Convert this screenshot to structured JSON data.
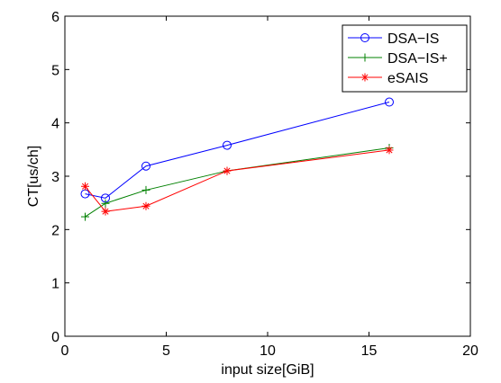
{
  "chart_data": {
    "type": "line",
    "xlabel": "input size[GiB]",
    "ylabel": "CT[us/ch]",
    "xlim": [
      0,
      20
    ],
    "ylim": [
      0,
      6
    ],
    "xticks": [
      0,
      5,
      10,
      15,
      20
    ],
    "yticks": [
      0,
      1,
      2,
      3,
      4,
      5,
      6
    ],
    "grid": false,
    "legend_position": "top-right",
    "series": [
      {
        "name": "DSA−IS",
        "color": "#0000ff",
        "marker": "circle",
        "x": [
          1,
          2,
          4,
          8,
          16
        ],
        "y": [
          2.67,
          2.59,
          3.19,
          3.58,
          4.39
        ]
      },
      {
        "name": "DSA−IS+",
        "color": "#008000",
        "marker": "plus",
        "x": [
          1,
          2,
          4,
          8,
          16
        ],
        "y": [
          2.24,
          2.49,
          2.74,
          3.1,
          3.53
        ]
      },
      {
        "name": "eSAIS",
        "color": "#ff0000",
        "marker": "asterisk",
        "x": [
          1,
          2,
          4,
          8,
          16
        ],
        "y": [
          2.81,
          2.34,
          2.44,
          3.1,
          3.49
        ]
      }
    ]
  }
}
